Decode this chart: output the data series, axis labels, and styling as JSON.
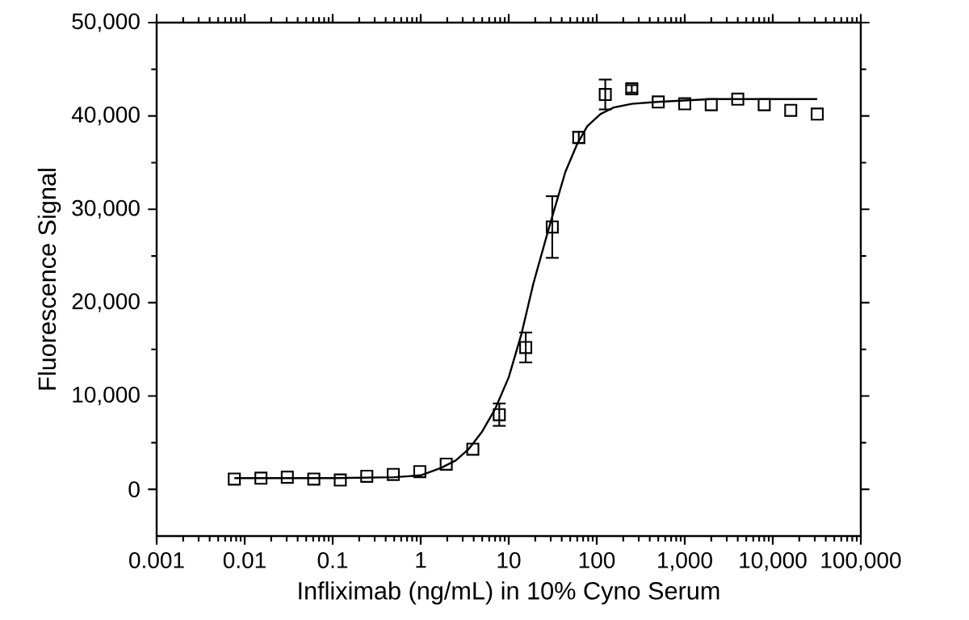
{
  "chart_data": {
    "type": "scatter",
    "xlabel": "Infliximab (ng/mL) in 10% Cyno Serum",
    "ylabel": "Fluorescence Signal",
    "log": "x",
    "xlim": [
      0.001,
      100000
    ],
    "xticks": [
      0.001,
      0.01,
      0.1,
      1,
      10,
      100,
      {
        "value": 1000,
        "label": "1,000"
      },
      {
        "value": 10000,
        "label": "10,000"
      },
      {
        "value": 100000,
        "label": "100,000"
      }
    ],
    "ylim": [
      -5000,
      50000
    ],
    "yticks": [
      0,
      {
        "value": 10000,
        "label": "10,000"
      },
      {
        "value": 20000,
        "label": "20,000"
      },
      {
        "value": 30000,
        "label": "30,000"
      },
      {
        "value": 40000,
        "label": "40,000"
      },
      {
        "value": 50000,
        "label": "50,000"
      }
    ],
    "series": [
      {
        "marker": "square",
        "color": "#000000",
        "x": [
          0.00763,
          0.0153,
          0.0305,
          0.061,
          0.122,
          0.244,
          0.488,
          0.977,
          1.95,
          3.91,
          7.81,
          15.6,
          31.25,
          62.5,
          125,
          250,
          500,
          1000,
          2000,
          4000,
          8000,
          16000,
          32000
        ],
        "values": [
          1100,
          1200,
          1300,
          1100,
          1000,
          1400,
          1600,
          1900,
          2700,
          4300,
          8000,
          15200,
          28100,
          37700,
          42300,
          42900,
          41500,
          41300,
          41200,
          41800,
          41200,
          40600,
          40200
        ],
        "errors": [
          null,
          null,
          null,
          null,
          null,
          null,
          null,
          null,
          null,
          null,
          1200,
          1600,
          3300,
          600,
          1600,
          400,
          null,
          null,
          null,
          null,
          null,
          null,
          null
        ]
      },
      {
        "type": "line",
        "marker": "none",
        "line_style": "solid",
        "color": "#000000",
        "x": [
          0.00763,
          0.1,
          0.5,
          1,
          1.7,
          2.5,
          3.5,
          5,
          7,
          10,
          14,
          19,
          29,
          44,
          60,
          78,
          110,
          155,
          250,
          480,
          2000,
          32000
        ],
        "values": [
          1200,
          1200,
          1300,
          1500,
          2300,
          3100,
          4300,
          6200,
          8600,
          12000,
          16700,
          22000,
          28200,
          34000,
          37000,
          38900,
          40200,
          40900,
          41300,
          41500,
          41800,
          41800
        ]
      }
    ]
  }
}
